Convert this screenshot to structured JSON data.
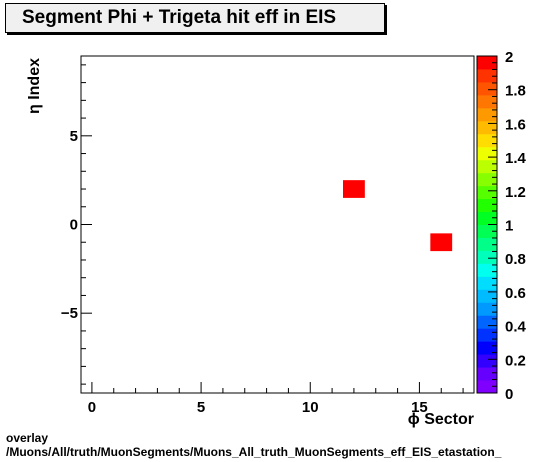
{
  "title": "Segment Phi + Trigeta hit eff in EIS",
  "footer": {
    "line1": "overlay",
    "line2": "/Muons/All/truth/MuonSegments/Muons_All_truth_MuonSegments_eff_EIS_etastation_"
  },
  "chart_data": {
    "type": "heatmap",
    "title": "Segment Phi + Trigeta hit eff in EIS",
    "xlabel": "ϕ Sector",
    "ylabel": "η Index",
    "xlim": [
      -0.5,
      17.5
    ],
    "ylim": [
      -9.5,
      9.5
    ],
    "x_ticks": [
      0,
      5,
      10,
      15
    ],
    "x_tick_labels": [
      "0",
      "5",
      "10",
      "15"
    ],
    "y_ticks": [
      -5,
      0,
      5
    ],
    "y_tick_labels": [
      "−5",
      "0",
      "5"
    ],
    "cells": [
      {
        "x": 12,
        "y": 2,
        "value": 2
      },
      {
        "x": 16,
        "y": -1,
        "value": 2
      }
    ],
    "colorbar": {
      "min": 0,
      "max": 2,
      "tick_labels": [
        "0",
        "0.2",
        "0.4",
        "0.6",
        "0.8",
        "1",
        "1.2",
        "1.4",
        "1.6",
        "1.8",
        "2"
      ],
      "colors": [
        "#7f00ff",
        "#6600ff",
        "#3300ff",
        "#0000ff",
        "#0033ff",
        "#0066ff",
        "#0099ff",
        "#00bbff",
        "#00ddff",
        "#00ffee",
        "#00ffbb",
        "#00ff88",
        "#00ff55",
        "#00ff22",
        "#22ff00",
        "#55ff00",
        "#88ff00",
        "#bbff00",
        "#eeff00",
        "#ffdd00",
        "#ffbb00",
        "#ff9900",
        "#ff7700",
        "#ff5500",
        "#ff3300",
        "#ff0000"
      ]
    },
    "grid": false,
    "legend": "none"
  }
}
